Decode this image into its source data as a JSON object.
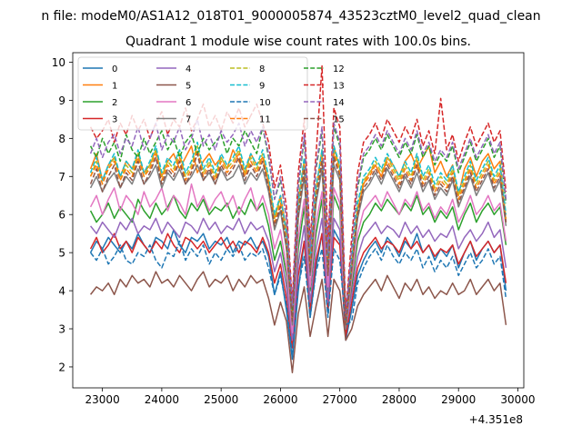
{
  "chart_data": {
    "type": "line",
    "suptitle": "n file: modeM0/AS1A12_018T01_9000005874_43523cztM0_level2_quad_clean",
    "title": "Quadrant 1 module wise count rates with 100.0s bins.",
    "xlabel": "",
    "ylabel": "",
    "x_offset_label": "+4.351e8",
    "xlim": [
      22500,
      30100
    ],
    "ylim": [
      1.45,
      10.25
    ],
    "x_ticks": [
      23000,
      24000,
      25000,
      26000,
      27000,
      28000,
      29000,
      30000
    ],
    "x_tick_labels": [
      "23000",
      "24000",
      "25000",
      "26000",
      "27000",
      "28000",
      "29000",
      "30000"
    ],
    "y_ticks": [
      2,
      3,
      4,
      5,
      6,
      7,
      8,
      9,
      10
    ],
    "y_tick_labels": [
      "2",
      "3",
      "4",
      "5",
      "6",
      "7",
      "8",
      "9",
      "10"
    ],
    "x_start": 22800,
    "x_step": 100,
    "legend": {
      "position": "top-left",
      "columns": 4
    },
    "series": [
      {
        "name": "0",
        "color": "#1f77b4",
        "dash": "solid",
        "values": [
          5.0,
          5.3,
          5.1,
          5.4,
          5.2,
          5.0,
          5.3,
          5.1,
          5.5,
          5.2,
          5.0,
          5.4,
          5.3,
          5.1,
          5.6,
          5.2,
          5.0,
          5.4,
          5.3,
          5.5,
          5.1,
          5.3,
          5.2,
          5.4,
          5.0,
          5.3,
          5.2,
          5.4,
          5.1,
          5.3,
          4.9,
          3.9,
          4.5,
          3.5,
          2.2,
          4.0,
          5.3,
          3.3,
          4.6,
          5.5,
          3.4,
          5.6,
          5.3,
          2.7,
          3.5,
          4.4,
          4.8,
          5.1,
          5.3,
          5.0,
          5.4,
          5.2,
          4.9,
          5.3,
          5.1,
          5.5,
          5.0,
          5.2,
          4.8,
          5.1,
          4.9,
          5.2,
          4.6,
          5.0,
          5.3,
          4.8,
          5.1,
          5.3,
          5.0,
          5.2,
          4.0
        ]
      },
      {
        "name": "1",
        "color": "#ff7f0e",
        "dash": "solid",
        "values": [
          7.2,
          7.6,
          6.9,
          7.3,
          7.5,
          7.0,
          7.4,
          7.2,
          7.6,
          7.1,
          7.3,
          7.7,
          7.0,
          7.4,
          7.6,
          7.2,
          7.5,
          7.8,
          7.1,
          7.4,
          7.6,
          7.3,
          7.5,
          7.2,
          7.7,
          7.4,
          7.1,
          7.6,
          7.3,
          7.5,
          6.8,
          5.9,
          6.5,
          5.6,
          3.4,
          6.4,
          7.4,
          4.8,
          6.7,
          7.7,
          4.6,
          7.8,
          7.2,
          3.1,
          4.7,
          6.1,
          6.8,
          7.1,
          7.3,
          7.0,
          7.5,
          7.3,
          7.0,
          7.4,
          7.6,
          7.2,
          7.5,
          7.8,
          7.1,
          7.4,
          7.0,
          7.3,
          6.5,
          7.2,
          7.5,
          7.0,
          7.4,
          7.6,
          7.2,
          7.4,
          5.8
        ]
      },
      {
        "name": "2",
        "color": "#2ca02c",
        "dash": "solid",
        "values": [
          6.1,
          5.8,
          6.0,
          6.3,
          5.9,
          6.2,
          6.0,
          5.8,
          6.4,
          6.1,
          5.9,
          6.3,
          6.0,
          6.2,
          6.5,
          6.1,
          5.9,
          6.3,
          6.1,
          6.4,
          6.0,
          6.2,
          6.1,
          6.3,
          5.9,
          6.2,
          6.0,
          6.4,
          6.1,
          6.3,
          5.7,
          4.8,
          5.3,
          4.4,
          2.8,
          5.1,
          6.2,
          4.0,
          5.5,
          6.4,
          3.9,
          6.5,
          6.1,
          2.9,
          4.1,
          5.3,
          5.8,
          6.0,
          6.3,
          6.1,
          6.4,
          6.2,
          6.0,
          6.3,
          6.1,
          6.5,
          6.0,
          6.2,
          5.8,
          6.1,
          5.9,
          6.2,
          5.6,
          6.0,
          6.3,
          5.8,
          6.1,
          6.3,
          6.0,
          6.2,
          5.2
        ]
      },
      {
        "name": "3",
        "color": "#d62728",
        "dash": "solid",
        "values": [
          5.1,
          5.4,
          5.0,
          5.2,
          5.5,
          5.1,
          5.3,
          5.0,
          5.4,
          5.2,
          5.0,
          5.3,
          5.1,
          5.5,
          5.2,
          5.0,
          5.4,
          5.3,
          5.1,
          5.3,
          5.0,
          5.2,
          5.4,
          5.1,
          5.3,
          5.0,
          5.3,
          5.2,
          5.0,
          5.4,
          5.0,
          4.2,
          4.7,
          3.8,
          2.5,
          4.4,
          5.3,
          3.5,
          4.8,
          5.5,
          3.5,
          5.4,
          5.2,
          2.8,
          3.7,
          4.6,
          5.0,
          5.2,
          5.4,
          5.1,
          5.3,
          5.2,
          5.0,
          5.4,
          5.1,
          5.3,
          5.0,
          5.2,
          4.9,
          5.1,
          5.0,
          5.2,
          4.7,
          5.0,
          5.3,
          4.9,
          5.1,
          5.3,
          5.0,
          5.2,
          4.2
        ]
      },
      {
        "name": "4",
        "color": "#9467bd",
        "dash": "solid",
        "values": [
          5.7,
          5.5,
          5.8,
          5.6,
          5.4,
          5.8,
          5.6,
          5.9,
          5.5,
          5.7,
          5.6,
          5.9,
          5.5,
          5.8,
          5.6,
          5.4,
          5.8,
          5.7,
          5.5,
          5.9,
          5.6,
          5.8,
          5.5,
          5.7,
          5.6,
          5.9,
          5.5,
          5.8,
          5.6,
          5.7,
          5.3,
          4.5,
          5.0,
          4.1,
          2.7,
          4.7,
          5.7,
          3.7,
          5.1,
          5.9,
          3.7,
          5.9,
          5.6,
          3.0,
          3.9,
          4.9,
          5.4,
          5.6,
          5.8,
          5.5,
          5.7,
          5.6,
          5.4,
          5.8,
          5.5,
          5.7,
          5.4,
          5.6,
          5.3,
          5.5,
          5.4,
          5.7,
          5.1,
          5.4,
          5.6,
          5.3,
          5.5,
          5.8,
          5.4,
          5.6,
          4.6
        ]
      },
      {
        "name": "5",
        "color": "#8c564b",
        "dash": "solid",
        "values": [
          3.9,
          4.1,
          4.0,
          4.2,
          3.9,
          4.3,
          4.1,
          4.4,
          4.2,
          4.3,
          4.1,
          4.5,
          4.2,
          4.3,
          4.1,
          4.4,
          4.2,
          4.0,
          4.3,
          4.5,
          4.1,
          4.3,
          4.2,
          4.4,
          4.0,
          4.3,
          4.1,
          4.4,
          4.2,
          4.3,
          3.8,
          3.1,
          3.7,
          3.2,
          1.85,
          3.4,
          4.1,
          2.8,
          3.6,
          4.3,
          2.8,
          4.3,
          4.0,
          2.7,
          3.0,
          3.6,
          3.9,
          4.1,
          4.3,
          4.0,
          4.4,
          4.1,
          3.8,
          4.2,
          4.0,
          4.3,
          3.9,
          4.1,
          3.8,
          4.0,
          3.9,
          4.2,
          3.9,
          4.0,
          4.3,
          3.9,
          4.1,
          4.3,
          4.0,
          4.2,
          3.1
        ]
      },
      {
        "name": "6",
        "color": "#e377c2",
        "dash": "solid",
        "values": [
          6.2,
          6.5,
          6.0,
          6.4,
          6.7,
          6.1,
          6.5,
          6.3,
          6.0,
          6.6,
          6.2,
          6.4,
          6.7,
          6.1,
          6.5,
          6.3,
          6.0,
          6.8,
          6.2,
          6.5,
          6.1,
          6.4,
          6.6,
          6.2,
          6.5,
          6.0,
          6.4,
          6.7,
          6.1,
          6.5,
          6.0,
          5.1,
          5.6,
          4.6,
          2.9,
          5.4,
          6.4,
          4.1,
          5.8,
          6.6,
          4.1,
          6.7,
          6.3,
          3.0,
          4.3,
          5.5,
          6.1,
          6.3,
          6.5,
          6.2,
          6.6,
          6.3,
          6.0,
          6.4,
          6.2,
          6.6,
          6.1,
          6.3,
          5.9,
          6.2,
          6.0,
          6.4,
          5.8,
          6.1,
          6.5,
          6.0,
          6.2,
          6.5,
          6.1,
          6.3,
          5.3
        ]
      },
      {
        "name": "7",
        "color": "#7f7f7f",
        "dash": "solid",
        "values": [
          6.7,
          7.0,
          6.6,
          6.9,
          7.1,
          6.7,
          7.0,
          6.8,
          7.2,
          6.8,
          7.0,
          7.3,
          6.7,
          7.1,
          6.9,
          7.2,
          6.8,
          7.0,
          7.3,
          6.9,
          7.1,
          6.8,
          7.2,
          6.9,
          7.0,
          7.3,
          6.8,
          7.1,
          6.9,
          7.2,
          6.6,
          5.6,
          6.1,
          5.1,
          3.1,
          5.9,
          7.0,
          4.4,
          6.3,
          7.2,
          4.4,
          7.3,
          6.9,
          3.0,
          4.5,
          5.9,
          6.6,
          6.8,
          7.1,
          6.8,
          7.2,
          6.9,
          6.6,
          7.0,
          6.7,
          7.1,
          6.6,
          6.9,
          6.4,
          6.7,
          6.5,
          6.9,
          6.2,
          6.6,
          7.0,
          6.5,
          6.8,
          7.1,
          6.6,
          6.9,
          5.7
        ]
      },
      {
        "name": "8",
        "color": "#bcbd22",
        "dash": "dashed",
        "values": [
          7.0,
          7.4,
          6.8,
          7.2,
          7.5,
          6.9,
          7.3,
          7.1,
          7.6,
          7.0,
          7.3,
          7.7,
          7.0,
          7.4,
          7.2,
          7.6,
          7.0,
          7.3,
          7.8,
          7.1,
          7.4,
          7.0,
          7.5,
          7.2,
          7.4,
          7.7,
          7.1,
          7.5,
          7.2,
          7.6,
          6.9,
          5.9,
          6.4,
          5.4,
          3.3,
          6.2,
          7.4,
          4.7,
          6.6,
          7.6,
          4.6,
          7.7,
          7.2,
          3.1,
          4.7,
          6.2,
          6.9,
          7.1,
          7.4,
          7.1,
          7.5,
          7.2,
          6.9,
          7.3,
          7.0,
          7.5,
          6.9,
          7.2,
          6.7,
          7.0,
          6.8,
          7.2,
          6.5,
          6.9,
          7.3,
          6.8,
          7.1,
          7.4,
          6.9,
          7.2,
          5.9
        ]
      },
      {
        "name": "9",
        "color": "#17becf",
        "dash": "dashed",
        "values": [
          7.1,
          7.5,
          6.9,
          7.3,
          7.6,
          7.0,
          7.4,
          7.2,
          7.7,
          7.1,
          7.4,
          7.8,
          7.1,
          7.5,
          7.3,
          7.7,
          7.1,
          7.4,
          7.9,
          7.2,
          7.5,
          7.1,
          7.6,
          7.3,
          7.5,
          7.8,
          7.2,
          7.6,
          7.3,
          7.7,
          7.0,
          6.0,
          6.5,
          5.5,
          3.4,
          6.3,
          7.5,
          4.8,
          6.7,
          7.7,
          4.7,
          7.8,
          7.3,
          3.2,
          4.8,
          6.3,
          7.0,
          7.2,
          7.5,
          7.2,
          7.6,
          7.3,
          7.0,
          7.4,
          7.1,
          7.6,
          7.0,
          7.3,
          6.8,
          7.1,
          6.9,
          7.3,
          6.6,
          7.0,
          7.4,
          6.9,
          7.2,
          7.5,
          7.0,
          7.3,
          6.0
        ]
      },
      {
        "name": "10",
        "color": "#1f77b4",
        "dash": "dashed",
        "values": [
          5.0,
          4.8,
          5.1,
          4.7,
          4.9,
          5.2,
          4.8,
          4.7,
          5.0,
          4.9,
          5.2,
          4.8,
          4.6,
          5.0,
          4.9,
          5.3,
          4.8,
          5.1,
          4.9,
          5.2,
          4.7,
          5.0,
          4.8,
          5.1,
          4.9,
          5.2,
          4.8,
          5.0,
          4.9,
          5.1,
          4.6,
          3.9,
          4.4,
          3.6,
          2.3,
          4.1,
          4.9,
          3.3,
          4.5,
          5.1,
          3.3,
          5.1,
          4.8,
          3.1,
          3.2,
          4.2,
          4.6,
          4.9,
          5.1,
          4.8,
          5.2,
          4.9,
          4.7,
          5.0,
          4.8,
          5.1,
          4.6,
          4.9,
          4.5,
          4.8,
          4.6,
          4.9,
          4.4,
          4.7,
          5.0,
          4.6,
          4.8,
          5.1,
          4.7,
          4.9,
          3.8
        ]
      },
      {
        "name": "11",
        "color": "#ff7f0e",
        "dash": "dashed",
        "values": [
          7.0,
          7.3,
          6.8,
          7.2,
          7.4,
          6.9,
          7.2,
          7.0,
          7.5,
          7.0,
          7.2,
          7.6,
          6.9,
          7.3,
          7.1,
          7.5,
          6.9,
          7.2,
          7.7,
          7.0,
          7.3,
          6.9,
          7.4,
          7.1,
          7.3,
          7.6,
          7.0,
          7.4,
          7.1,
          7.5,
          6.8,
          5.8,
          6.3,
          5.3,
          3.3,
          6.1,
          7.3,
          4.6,
          6.5,
          7.5,
          4.5,
          7.6,
          7.1,
          3.1,
          4.6,
          6.1,
          6.8,
          7.0,
          7.3,
          7.0,
          7.4,
          7.1,
          6.8,
          7.2,
          6.9,
          7.4,
          6.8,
          7.1,
          6.6,
          6.9,
          6.7,
          7.1,
          6.4,
          6.8,
          7.2,
          6.7,
          7.0,
          7.3,
          6.8,
          7.1,
          5.8
        ]
      },
      {
        "name": "12",
        "color": "#2ca02c",
        "dash": "dashed",
        "values": [
          7.8,
          7.5,
          8.0,
          7.6,
          7.9,
          7.4,
          8.1,
          7.7,
          7.5,
          8.0,
          7.6,
          7.9,
          8.2,
          7.7,
          8.0,
          7.5,
          7.9,
          8.1,
          7.6,
          8.0,
          7.7,
          7.9,
          8.1,
          7.6,
          8.0,
          7.8,
          8.2,
          7.9,
          7.6,
          8.3,
          7.5,
          6.4,
          6.9,
          5.9,
          3.5,
          6.7,
          8.0,
          5.1,
          7.2,
          8.2,
          5.0,
          8.3,
          7.8,
          3.3,
          5.1,
          6.7,
          7.5,
          7.7,
          8.0,
          7.7,
          8.1,
          7.8,
          7.5,
          7.9,
          7.6,
          8.1,
          7.5,
          7.8,
          7.3,
          7.6,
          7.4,
          7.8,
          7.1,
          7.5,
          7.9,
          7.4,
          7.7,
          8.0,
          7.5,
          7.8,
          6.3
        ]
      },
      {
        "name": "13",
        "color": "#d62728",
        "dash": "dashed",
        "values": [
          8.3,
          8.0,
          8.2,
          8.5,
          7.9,
          8.4,
          8.1,
          8.6,
          8.2,
          8.5,
          8.0,
          8.4,
          8.7,
          8.1,
          8.5,
          8.3,
          8.8,
          8.2,
          8.5,
          8.9,
          8.3,
          8.6,
          8.2,
          8.7,
          8.4,
          8.8,
          8.3,
          8.6,
          8.9,
          8.4,
          7.9,
          6.7,
          7.3,
          6.2,
          3.7,
          7.1,
          8.5,
          5.3,
          7.6,
          9.9,
          5.2,
          8.8,
          8.3,
          3.4,
          5.4,
          7.1,
          7.9,
          8.1,
          8.4,
          8.0,
          8.5,
          8.2,
          7.9,
          8.3,
          8.0,
          8.5,
          7.8,
          8.2,
          7.6,
          9.05,
          7.7,
          8.1,
          7.4,
          7.9,
          8.3,
          7.8,
          8.1,
          8.4,
          7.9,
          8.2,
          6.6
        ]
      },
      {
        "name": "14",
        "color": "#9467bd",
        "dash": "dashed",
        "values": [
          7.6,
          8.0,
          7.5,
          7.9,
          8.1,
          7.6,
          8.0,
          7.8,
          8.3,
          7.7,
          8.0,
          8.4,
          7.7,
          8.1,
          7.9,
          8.3,
          7.7,
          8.0,
          8.5,
          7.8,
          8.1,
          7.7,
          8.2,
          7.9,
          8.1,
          8.4,
          7.8,
          8.2,
          7.9,
          8.3,
          7.6,
          6.4,
          7.0,
          5.9,
          3.6,
          6.8,
          8.1,
          5.1,
          7.3,
          8.3,
          5.0,
          8.4,
          7.9,
          3.3,
          5.1,
          6.8,
          7.6,
          7.8,
          8.1,
          7.8,
          8.2,
          7.9,
          7.6,
          8.0,
          7.7,
          8.2,
          7.6,
          7.9,
          7.4,
          7.7,
          7.5,
          7.9,
          7.2,
          7.6,
          8.0,
          7.5,
          7.8,
          8.1,
          7.6,
          7.9,
          6.4
        ]
      },
      {
        "name": "15",
        "color": "#8c564b",
        "dash": "dashed",
        "values": [
          6.8,
          7.2,
          6.6,
          7.0,
          7.3,
          6.7,
          7.1,
          6.9,
          7.4,
          6.8,
          7.1,
          7.5,
          6.8,
          7.2,
          7.0,
          7.4,
          6.8,
          7.1,
          7.6,
          6.9,
          7.2,
          6.8,
          7.3,
          7.0,
          7.2,
          7.5,
          6.9,
          7.3,
          7.0,
          7.4,
          6.7,
          5.7,
          6.2,
          5.2,
          3.2,
          6.0,
          7.2,
          4.5,
          6.4,
          7.4,
          4.4,
          7.5,
          7.0,
          3.1,
          4.6,
          6.0,
          6.7,
          6.9,
          7.2,
          6.9,
          7.3,
          7.0,
          6.7,
          7.1,
          6.8,
          7.3,
          6.7,
          7.0,
          6.5,
          6.8,
          6.6,
          7.0,
          6.3,
          6.7,
          7.1,
          6.6,
          6.9,
          7.2,
          6.7,
          7.0,
          5.8
        ]
      }
    ]
  }
}
